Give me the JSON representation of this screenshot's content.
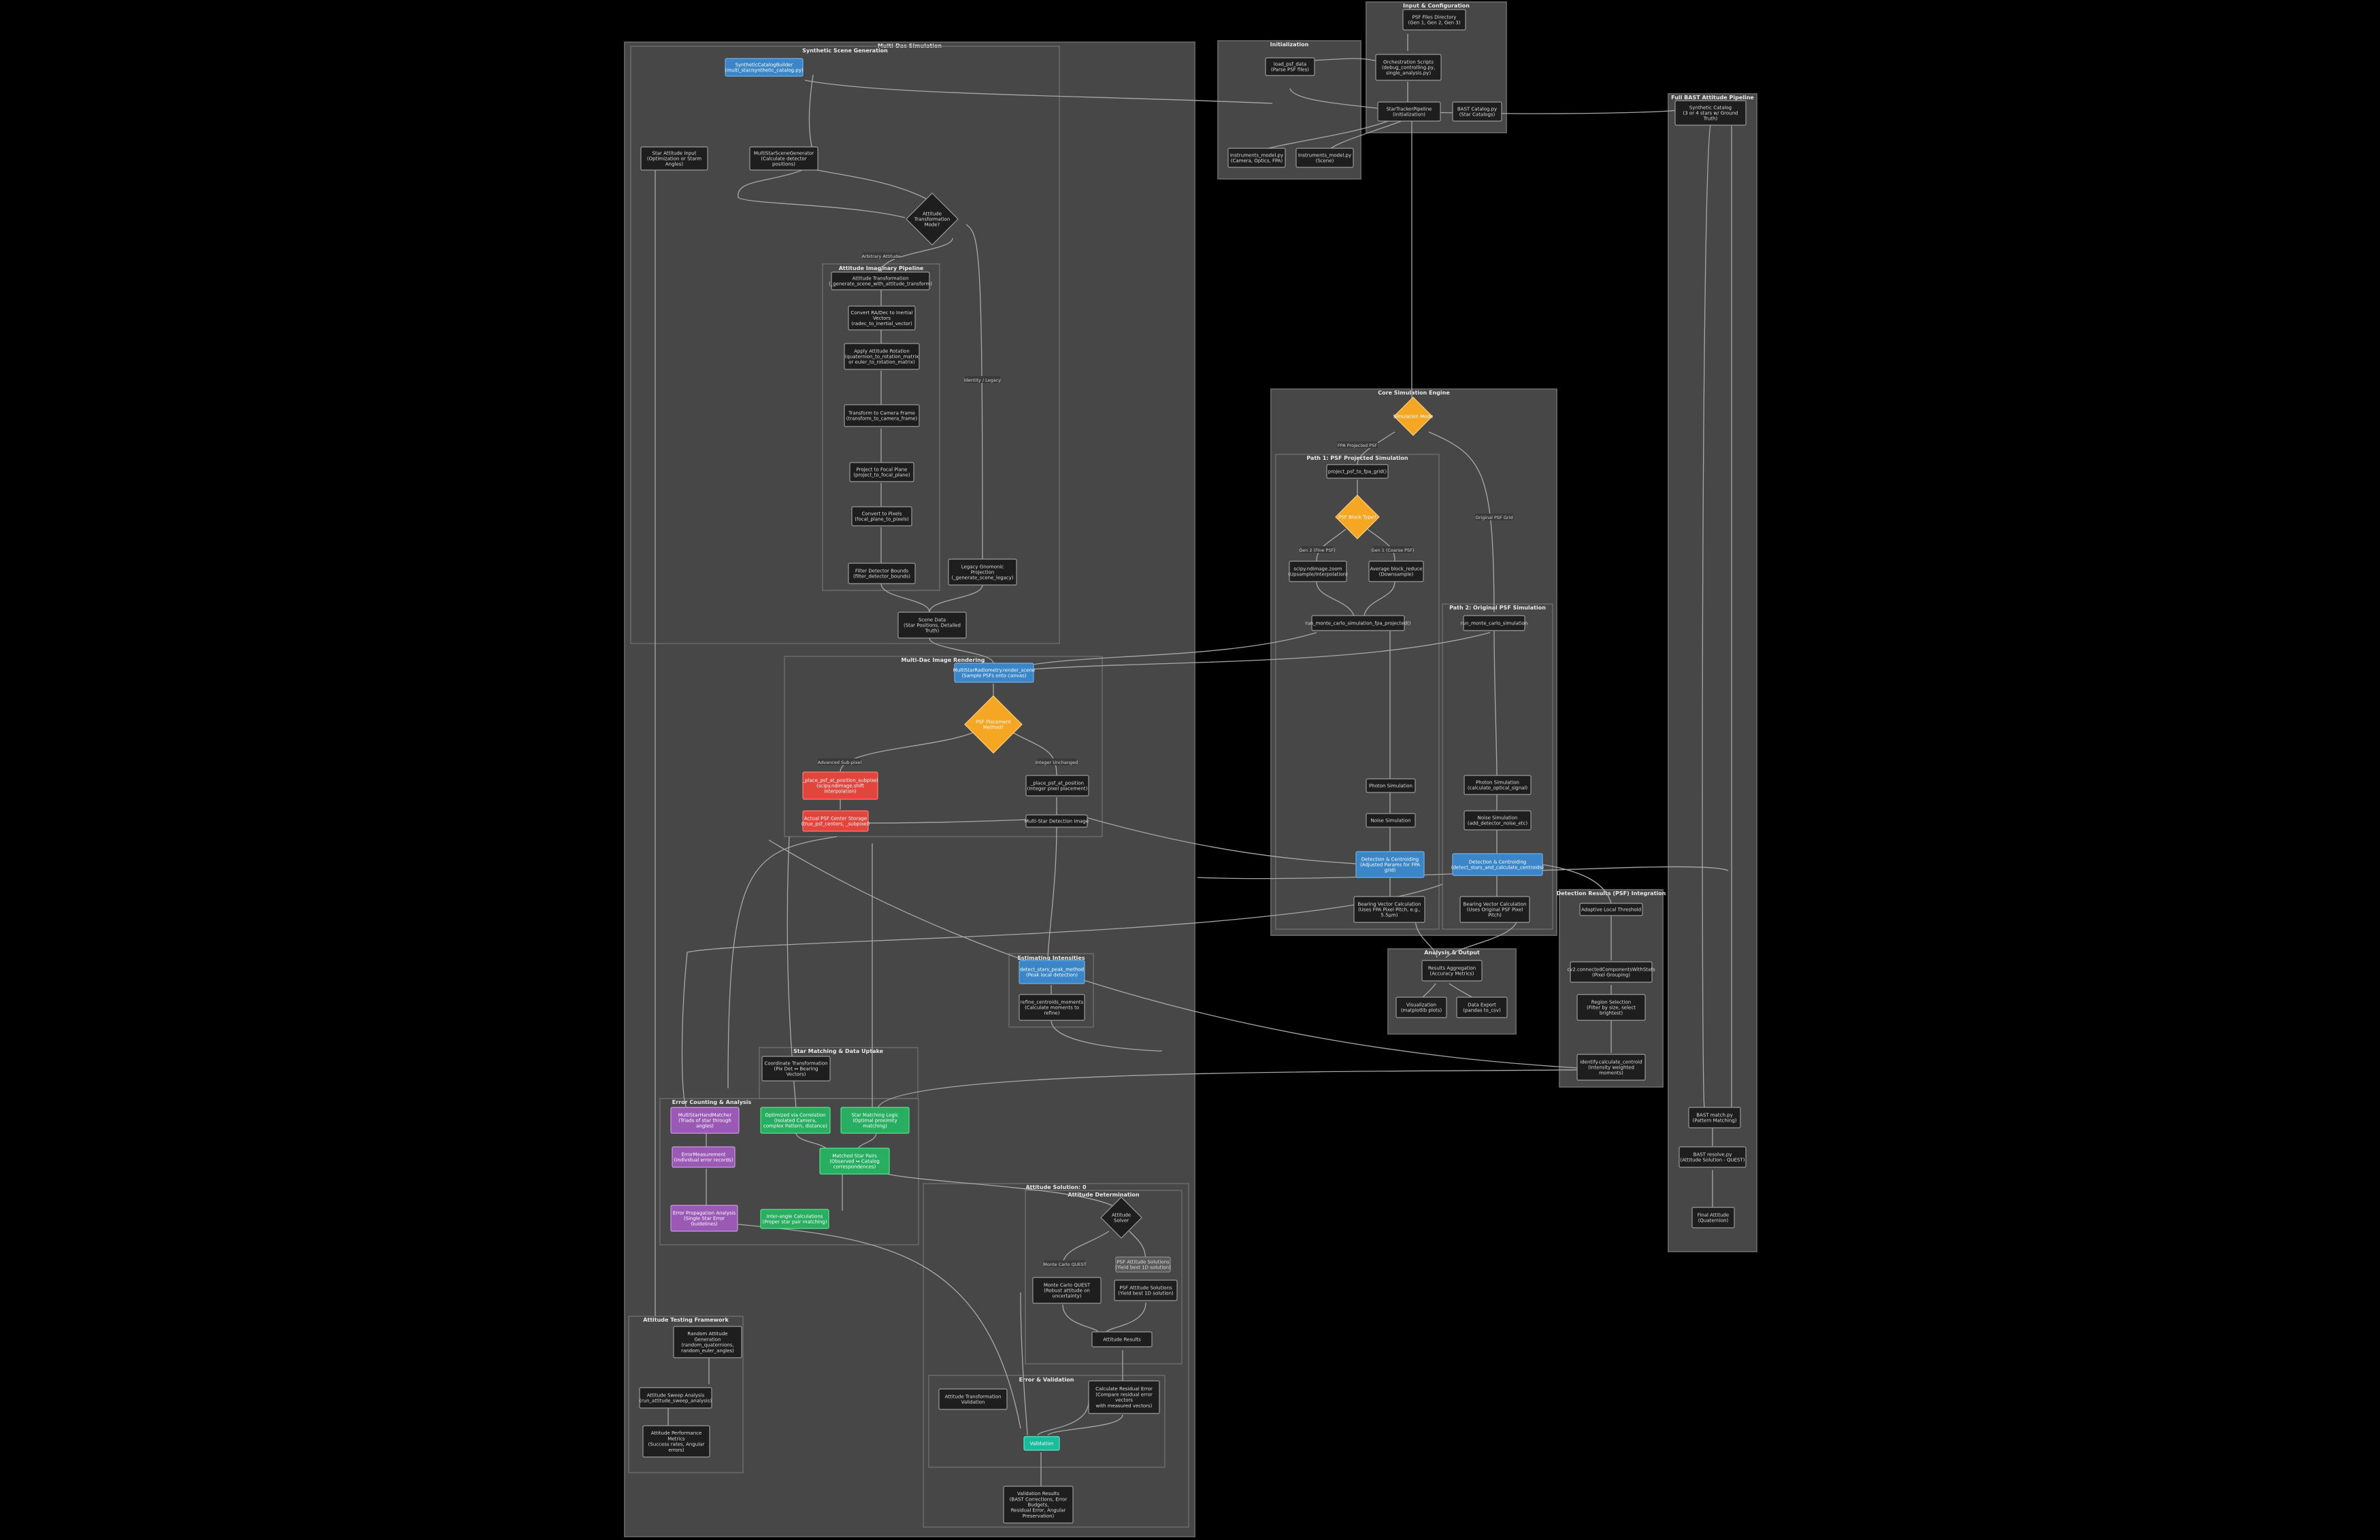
{
  "groups": {
    "main": "Multi-Dac Simulation",
    "scene": "Synthetic Scene Generation",
    "attitude_pipeline": "Attitude Imaginary Pipeline",
    "render": "Multi-Dac Image Rendering",
    "intensities": "Estimating Intensities",
    "star_matching": "Star Matching & Data Uptake",
    "error_analysis": "Error Counting & Analysis",
    "attitude_solution": "Attitude Solution: 0",
    "determination": "Attitude Determination",
    "validation": "Error & Validation",
    "testing": "Attitude Testing Framework",
    "initialization": "Initialization",
    "input": "Input & Configuration",
    "psf_engine": "Core Simulation Engine",
    "psf_path1": "Path 1: PSF Projected Simulation",
    "psf_path2": "Path 2: Original PSF Simulation",
    "detection": "Detection Results (PSF) Integration",
    "analysis": "Analysis & Output",
    "fullsolve": "Full BAST Attitude Pipeline"
  },
  "nodes": {
    "synth_catalog": [
      "SyntheticCatalogBuilder",
      "(multi_star/synthetic_catalog.py)"
    ],
    "star_attitude_input": [
      "Star Attitude Input",
      "(Optimization or Starm",
      "Angles)"
    ],
    "multistar_scene": [
      "MultiStarSceneGenerator",
      "(Calculate detector",
      "positions)"
    ],
    "attitude_d": [
      "Attitude",
      "Transformation",
      "Mode?"
    ],
    "attitude_transform": [
      "Attitude Transformation",
      "(_generate_scene_with_attitude_transform)"
    ],
    "convert_radec": [
      "Convert RA/Dec to Inertial",
      "Vectors",
      "(radec_to_inertial_vector)"
    ],
    "apply_rotation": [
      "Apply Attitude Rotation",
      "(quaternion_to_rotation_matrix",
      "or euler_to_rotation_matrix)"
    ],
    "transform_camera": [
      "Transform to Camera Frame",
      "(transform_to_camera_frame)"
    ],
    "project_focal": [
      "Project to Focal Plane",
      "(project_to_focal_plane)"
    ],
    "convert_pixels": [
      "Convert to Pixels",
      "(focal_plane_to_pixels)"
    ],
    "filter_bounds": [
      "Filter Detector Bounds",
      "(filter_detector_bounds)"
    ],
    "legacy_projection": [
      "Legacy Gnomonic",
      "Projection",
      "(_generate_scene_legacy)"
    ],
    "scene_data": [
      "Scene Data",
      "(Star Positions, Detailed",
      "Truth)"
    ],
    "render_scene": [
      "MultiStarRadiometry.render_scene",
      "(Sample PSFs onto canvas)"
    ],
    "psf_placement": [
      "PSF Placement",
      "Method?"
    ],
    "place_psf_sub": [
      "_place_psf_at_position_subpixel",
      "(scipy.ndimage.shift",
      "Interpolation)"
    ],
    "place_psf_int": [
      "_place_psf_at_position",
      "(Integer pixel placement)"
    ],
    "psf_center": [
      "Actual PSF Center Storage",
      "(true_psf_centers, _subpixel)"
    ],
    "multistar_image": [
      "Multi-Star Detection Image"
    ],
    "detect_stars": [
      "detect_stars_peak_method",
      "(Peak local detection)"
    ],
    "refine_centroids": [
      "refine_centroids_moments",
      "(Calculate moments to",
      "refine)"
    ],
    "coordinate_transform": [
      "Coordinate Transformation",
      "(Pix Det ↔ Bearing",
      "Vectors)"
    ],
    "hand_matcher": [
      "MultiStarHandMatcher",
      "(Triads of star through",
      "angles)"
    ],
    "error_measurement": [
      "ErrorMeasurement",
      "(individual error records)"
    ],
    "error_propagation": [
      "Error Propagation Analysis",
      "(Single Star Error",
      "Guidelines)"
    ],
    "optimized_correlation": [
      "Optimized via Correlation",
      "(Isolated Camera,",
      "complex Pattern, distance)"
    ],
    "star_matching": [
      "Star Matching Logic",
      "(Optimal proximity",
      "matching)"
    ],
    "matched_pairs": [
      "Matched Star Pairs",
      "(Observed ↔ Catalog",
      "correspondences)"
    ],
    "inter_angle": [
      "Inter-angle Calculations",
      "(Proper star pair matching)"
    ],
    "attitude_solver": [
      "Attitude",
      "Solver"
    ],
    "monte_carlo": [
      "Monte Carlo QUEST",
      "(Robust attitude on",
      "uncertainty)"
    ],
    "psf_errors": [
      "PSF Attitude Solutions",
      "(Yield best 1D solution)"
    ],
    "attitude_results": [
      "Attitude Results"
    ],
    "attitude_transform_validate": [
      "Attitude Transformation",
      "Validation"
    ],
    "calc_residual": [
      "Calculate Residual Error",
      "(Compare residual error",
      "vectors",
      "with measured vectors)"
    ],
    "validation": [
      "Validation"
    ],
    "random_attitude": [
      "Random Attitude",
      "Generation",
      "(random_quaternions,",
      "random_euler_angles)"
    ],
    "attitude_sweep": [
      "Attitude Sweep Analysis",
      "(run_attitude_sweep_analysis)"
    ],
    "attitude_performance": [
      "Attitude Performance",
      "Metrics",
      "(Success rates, Angular",
      "errors)"
    ],
    "validation_results": [
      "Validation Results",
      "(BAST Corrections, Error",
      "Budgets,",
      "Residual Error, Angular",
      "Preservation)"
    ],
    "load_psf_data": [
      "load_psf_data",
      "(Parse PSF files)"
    ],
    "orchestration": [
      "Orchestration Scripts",
      "(debug_controlling.py,",
      "single_analysis.py)"
    ],
    "psf_files": [
      "PSF Files Directory",
      "(Gen 1, Gen 2, Gen 3)"
    ],
    "star_tracker_pipeline": [
      "StarTrackerPipeline",
      "(initialization)"
    ],
    "bast_catalog": [
      "BAST Catalog.py",
      "(Star Catalogs)"
    ],
    "camera_model": [
      "Instruments_model.py",
      "(Camera, Optics, FPA)"
    ],
    "scene_model": [
      "Instruments_model.py",
      "(Scene)"
    ],
    "simulation_mode": [
      "Simulation Mode"
    ],
    "project_psf": [
      "project_psf_to_fpa_grid()"
    ],
    "psf_block_type": [
      "PSF Block Type?"
    ],
    "scipy_resample": [
      "scipy.ndimage.zoom",
      "(Upsample/Interpolation)"
    ],
    "average_block": [
      "Average block_reduce",
      "(Downsample)"
    ],
    "run_monte_proj": [
      "run_monte_carlo_simulation_fpa_projected()"
    ],
    "run_monte_orig": [
      "run_monte_carlo_simulation"
    ],
    "photon_sim1": [
      "Photon Simulation"
    ],
    "noise_sim1": [
      "Noise Simulation"
    ],
    "photon_sim2": [
      "Photon Simulation",
      "(calculate_optical_signal)"
    ],
    "noise_sim2": [
      "Noise Simulation",
      "(add_detector_noise_etc)"
    ],
    "detection_centroid1": [
      "Detection & Centroiding",
      "(Adjusted Params for FPA",
      "grid)"
    ],
    "detection_centroid2": [
      "Detection & Centroiding",
      "(detect_stars_and_calculate_centroids)"
    ],
    "bearing_proj": [
      "Bearing Vector Calculation",
      "(Uses FPA Pixel Pitch, e.g.,",
      "5.5µm)"
    ],
    "bearing_orig": [
      "Bearing Vector Calculation",
      "(Uses Original PSF Pixel",
      "Pitch)"
    ],
    "results_aggregation": [
      "Results Aggregation",
      "(Accuracy Metrics)"
    ],
    "visualization": [
      "Visualization",
      "(matplotlib plots)"
    ],
    "data_export": [
      "Data Export",
      "(pandas to_csv)"
    ],
    "adaptive_threshold": [
      "Adaptive Local Threshold"
    ],
    "cc_components": [
      "cv2.connectedComponentsWithStats",
      "(Pixel Grouping)"
    ],
    "region_selection": [
      "Region Selection",
      "(Filter by size, select",
      "brightest)"
    ],
    "identify_centroid": [
      "identify.calculate_centroid",
      "(Intensity weighted",
      "moments)"
    ],
    "synthetic_catalog_fs": [
      "Synthetic Catalog",
      "(3 or 4 stars w/ Ground",
      "Truth)"
    ],
    "bast_match": [
      "BAST match.py",
      "(Pattern Matching)"
    ],
    "bast_resolve": [
      "BAST resolve.py",
      "(Attitude Solution - QUEST)"
    ],
    "final_attitude": [
      "Final Attitude",
      "(Quaternion)"
    ]
  },
  "edge_labels": {
    "arbitrary_attitude": "Arbitrary Attitude",
    "identity_legacy": "Identity / Legacy",
    "advanced_subpixel": "Advanced Sub-pixel",
    "integer_unchanged": "Integer Unchanged",
    "fpa_projected": "FPA Projected PSF",
    "original_psf": "Original PSF Grid",
    "gen2_fine": "Gen 2 (Fine PSF)",
    "gen1_coarse": "Gen 1 (Coarse PSF)",
    "monte_carlo": "Monte Carlo QUEST",
    "psf_errors": "PSF Errors (Attitude Problem)"
  }
}
